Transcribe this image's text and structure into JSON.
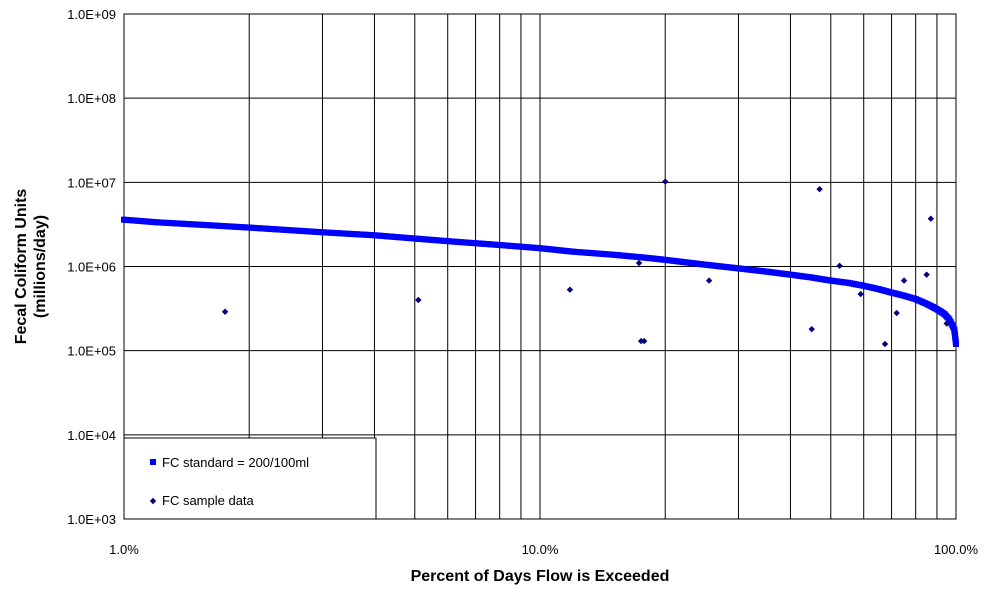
{
  "chart_data": {
    "type": "scatter",
    "xlabel": "Percent of Days Flow is Exceeded",
    "ylabel_line1": "Fecal Coliform Units",
    "ylabel_line2": "(millions/day)",
    "x_scale": "log",
    "y_scale": "log",
    "xlim": [
      1,
      100
    ],
    "ylim": [
      1000,
      1000000000
    ],
    "x_ticks": [
      {
        "value": 1,
        "label": "1.0%"
      },
      {
        "value": 10,
        "label": "10.0%"
      },
      {
        "value": 100,
        "label": "100.0%"
      }
    ],
    "y_ticks": [
      {
        "value": 1000,
        "label": "1.0E+03"
      },
      {
        "value": 10000,
        "label": "1.0E+04"
      },
      {
        "value": 100000,
        "label": "1.0E+05"
      },
      {
        "value": 1000000,
        "label": "1.0E+06"
      },
      {
        "value": 10000000,
        "label": "1.0E+07"
      },
      {
        "value": 100000000,
        "label": "1.0E+08"
      },
      {
        "value": 1000000000,
        "label": "1.0E+09"
      }
    ],
    "grid": true,
    "legend_position": "bottom-left",
    "colors": {
      "standard": "#0000ff",
      "samples": "#000080"
    },
    "series": [
      {
        "name": "FC standard = 200/100ml",
        "marker": "square",
        "x": [
          1,
          1.2,
          1.5,
          2,
          3,
          4,
          5,
          6,
          8,
          10,
          12,
          15,
          18,
          20,
          25,
          30,
          35,
          40,
          45,
          50,
          55,
          60,
          65,
          70,
          75,
          80,
          85,
          88,
          90,
          92,
          94,
          96,
          97,
          98,
          99,
          99.5,
          100
        ],
        "y": [
          3600000,
          3350000,
          3150000,
          2900000,
          2550000,
          2350000,
          2150000,
          2000000,
          1800000,
          1650000,
          1500000,
          1380000,
          1270000,
          1200000,
          1050000,
          950000,
          870000,
          800000,
          740000,
          680000,
          640000,
          590000,
          540000,
          490000,
          450000,
          410000,
          360000,
          330000,
          310000,
          290000,
          270000,
          240000,
          220000,
          200000,
          180000,
          150000,
          120000
        ]
      },
      {
        "name": "FC sample data",
        "marker": "diamond",
        "x": [
          1.75,
          5.1,
          11.8,
          17.3,
          17.5,
          17.8,
          20,
          25.5,
          45,
          47,
          52.5,
          59,
          67.5,
          72,
          75,
          85,
          87,
          95
        ],
        "y": [
          290000,
          400000,
          530000,
          1100000,
          130000,
          130000,
          10200000,
          680000,
          180000,
          8300000,
          1020000,
          470000,
          120000,
          280000,
          680000,
          800000,
          3700000,
          210000
        ]
      }
    ]
  }
}
